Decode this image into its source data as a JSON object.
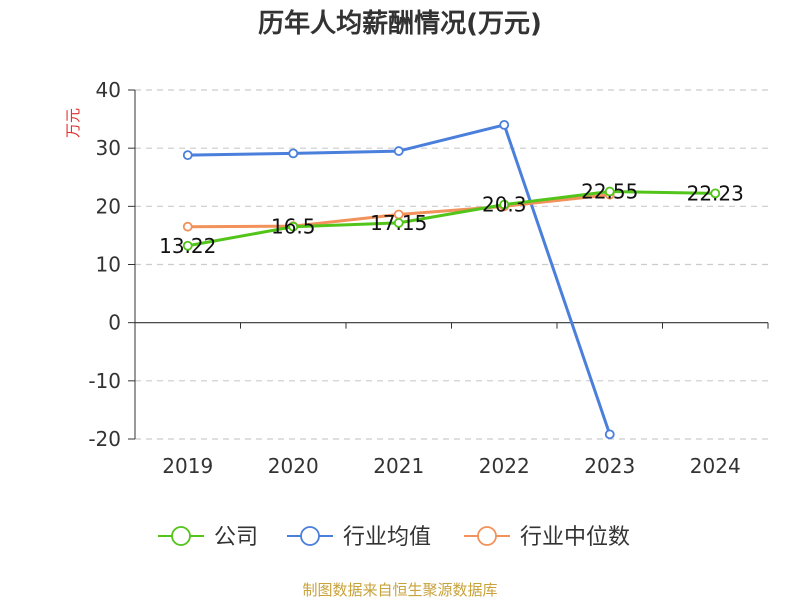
{
  "chart_data": {
    "type": "line",
    "title": "历年人均薪酬情况(万元)",
    "ylabel": "万元",
    "ylim": [
      -20,
      40
    ],
    "yticks": [
      40,
      30,
      20,
      10,
      0,
      -10,
      -20
    ],
    "categories": [
      "2019",
      "2020",
      "2021",
      "2022",
      "2023",
      "2024"
    ],
    "grid": true,
    "legend_position": "bottom",
    "series": [
      {
        "name": "公司",
        "color": "#52c41a",
        "values": [
          13.22,
          16.5,
          17.15,
          20.3,
          22.55,
          22.23
        ],
        "labels": [
          "13.22",
          "16.5",
          "17.15",
          "20.3",
          "22.55",
          "22.23"
        ]
      },
      {
        "name": "行业均值",
        "color": "#4a7fdc",
        "values": [
          28.8,
          29.1,
          29.5,
          34.0,
          -19.2,
          null
        ]
      },
      {
        "name": "行业中位数",
        "color": "#f3915a",
        "values": [
          16.5,
          16.6,
          18.6,
          20.0,
          22.0,
          null
        ]
      }
    ],
    "source": "制图数据来自恒生聚源数据库",
    "colors": {
      "title": "#333333",
      "ylabel": "#e03030",
      "source": "#c8a23a",
      "grid": "#cccccc",
      "axis": "#333333"
    }
  }
}
